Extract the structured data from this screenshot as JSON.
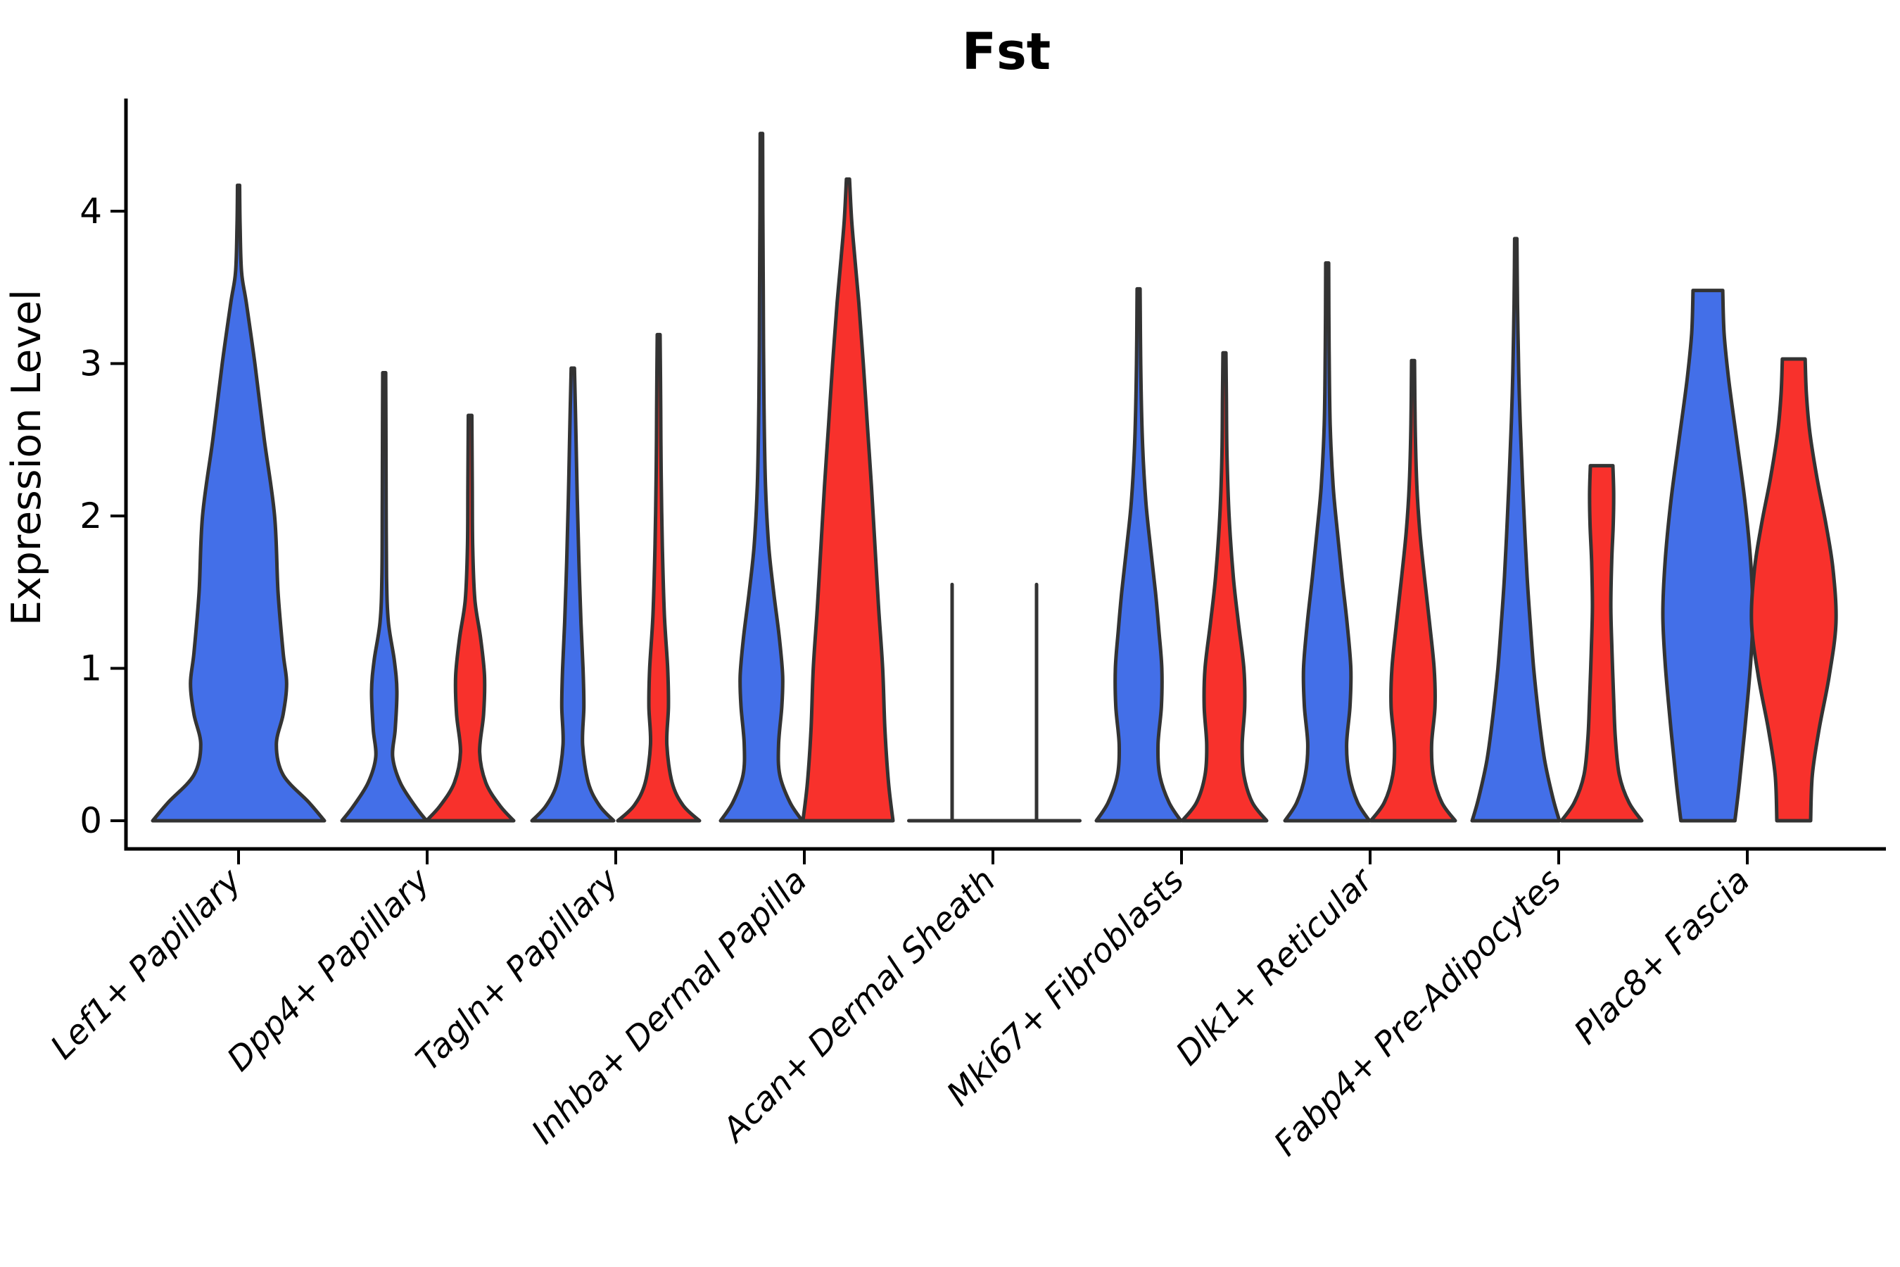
{
  "colors": {
    "blue": "#436FE8",
    "red": "#F8312C",
    "violin_stroke": "#333333",
    "axis": "#000000",
    "background": "#ffffff",
    "text": "#000000"
  },
  "chart_data": {
    "type": "violin",
    "title": "Fst",
    "ylabel": "Expression Level",
    "xlabel": "",
    "yticks": [
      0,
      1,
      2,
      3,
      4
    ],
    "ylim": [
      -0.18,
      4.74
    ],
    "legend": "none",
    "grid": false,
    "series": [
      {
        "id": "left-violin",
        "color": "blue"
      },
      {
        "id": "right-violin",
        "color": "red"
      }
    ],
    "categories": [
      "Lef1+ Papillary",
      "Dpp4+ Papillary",
      "Tagln+ Papillary",
      "Inhba+ Dermal Papilla",
      "Acan+ Dermal Sheath",
      "Mki67+ Fibroblasts",
      "Dlk1+ Reticular",
      "Fabp4+ Pre-Adipocytes",
      "Plac8+ Fascia"
    ],
    "groups": [
      {
        "category": "Lef1+ Papillary",
        "violins": [
          {
            "color": "blue",
            "kind": "violin",
            "max": 4.17,
            "offset": 0,
            "halfwidth": 122,
            "profile": [
              [
                0,
                1.0
              ],
              [
                0.12,
                0.82
              ],
              [
                0.3,
                0.52
              ],
              [
                0.5,
                0.44
              ],
              [
                0.7,
                0.52
              ],
              [
                0.9,
                0.56
              ],
              [
                1.1,
                0.52
              ],
              [
                1.5,
                0.46
              ],
              [
                2.0,
                0.42
              ],
              [
                2.5,
                0.3
              ],
              [
                3.0,
                0.19
              ],
              [
                3.4,
                0.09
              ],
              [
                3.6,
                0.035
              ],
              [
                3.9,
                0.018
              ],
              [
                4.17,
                0.012
              ]
            ]
          }
        ]
      },
      {
        "category": "Dpp4+ Papillary",
        "violins": [
          {
            "color": "blue",
            "kind": "violin",
            "max": 2.94,
            "offset": -61,
            "halfwidth": 60,
            "profile": [
              [
                0,
                1.0
              ],
              [
                0.1,
                0.72
              ],
              [
                0.25,
                0.38
              ],
              [
                0.42,
                0.2
              ],
              [
                0.6,
                0.26
              ],
              [
                0.85,
                0.3
              ],
              [
                1.05,
                0.24
              ],
              [
                1.3,
                0.1
              ],
              [
                1.6,
                0.055
              ],
              [
                2.1,
                0.045
              ],
              [
                2.6,
                0.04
              ],
              [
                2.94,
                0.035
              ]
            ]
          },
          {
            "color": "red",
            "kind": "violin",
            "max": 2.66,
            "offset": 61,
            "halfwidth": 62,
            "profile": [
              [
                0,
                1.0
              ],
              [
                0.1,
                0.68
              ],
              [
                0.25,
                0.36
              ],
              [
                0.45,
                0.22
              ],
              [
                0.7,
                0.31
              ],
              [
                0.95,
                0.33
              ],
              [
                1.2,
                0.24
              ],
              [
                1.45,
                0.11
              ],
              [
                1.8,
                0.06
              ],
              [
                2.2,
                0.05
              ],
              [
                2.66,
                0.04
              ]
            ]
          }
        ]
      },
      {
        "category": "Tagln+ Papillary",
        "violins": [
          {
            "color": "blue",
            "kind": "violin",
            "max": 2.97,
            "offset": -61,
            "halfwidth": 58,
            "profile": [
              [
                0,
                1.0
              ],
              [
                0.1,
                0.65
              ],
              [
                0.25,
                0.38
              ],
              [
                0.5,
                0.24
              ],
              [
                0.75,
                0.27
              ],
              [
                1.0,
                0.25
              ],
              [
                1.3,
                0.2
              ],
              [
                1.7,
                0.15
              ],
              [
                2.1,
                0.11
              ],
              [
                2.5,
                0.08
              ],
              [
                2.97,
                0.04
              ]
            ]
          },
          {
            "color": "red",
            "kind": "violin",
            "max": 3.19,
            "offset": 61,
            "halfwidth": 58,
            "profile": [
              [
                0,
                1.0
              ],
              [
                0.1,
                0.6
              ],
              [
                0.25,
                0.33
              ],
              [
                0.5,
                0.2
              ],
              [
                0.75,
                0.24
              ],
              [
                1.0,
                0.22
              ],
              [
                1.35,
                0.14
              ],
              [
                1.8,
                0.09
              ],
              [
                2.3,
                0.06
              ],
              [
                2.7,
                0.05
              ],
              [
                3.19,
                0.035
              ]
            ]
          }
        ]
      },
      {
        "category": "Inhba+ Dermal Papilla",
        "violins": [
          {
            "color": "blue",
            "kind": "violin",
            "max": 4.51,
            "offset": -61,
            "halfwidth": 58,
            "profile": [
              [
                0,
                1.0
              ],
              [
                0.12,
                0.7
              ],
              [
                0.3,
                0.45
              ],
              [
                0.5,
                0.42
              ],
              [
                0.75,
                0.5
              ],
              [
                0.95,
                0.52
              ],
              [
                1.2,
                0.44
              ],
              [
                1.5,
                0.3
              ],
              [
                1.8,
                0.18
              ],
              [
                2.2,
                0.1
              ],
              [
                2.8,
                0.06
              ],
              [
                3.5,
                0.045
              ],
              [
                4.0,
                0.035
              ],
              [
                4.51,
                0.03
              ]
            ]
          },
          {
            "color": "red",
            "kind": "violin",
            "max": 4.21,
            "offset": 62,
            "halfwidth": 64,
            "profile": [
              [
                0,
                1.0
              ],
              [
                0.25,
                0.9
              ],
              [
                0.6,
                0.82
              ],
              [
                1.0,
                0.77
              ],
              [
                1.4,
                0.68
              ],
              [
                1.8,
                0.6
              ],
              [
                2.2,
                0.52
              ],
              [
                2.6,
                0.43
              ],
              [
                3.0,
                0.34
              ],
              [
                3.4,
                0.24
              ],
              [
                3.7,
                0.15
              ],
              [
                3.95,
                0.08
              ],
              [
                4.21,
                0.035
              ]
            ]
          }
        ]
      },
      {
        "category": "Acan+ Dermal Sheath",
        "violins": [
          {
            "color": "blue",
            "kind": "line",
            "max": 1.55,
            "offset": -58,
            "halfwidth": 62
          },
          {
            "color": "red",
            "kind": "line",
            "max": 1.55,
            "offset": 62,
            "halfwidth": 62
          }
        ]
      },
      {
        "category": "Mki67+ Fibroblasts",
        "violins": [
          {
            "color": "blue",
            "kind": "violin",
            "max": 3.49,
            "offset": -61,
            "halfwidth": 60,
            "profile": [
              [
                0,
                1.0
              ],
              [
                0.12,
                0.72
              ],
              [
                0.3,
                0.5
              ],
              [
                0.5,
                0.46
              ],
              [
                0.75,
                0.54
              ],
              [
                1.0,
                0.55
              ],
              [
                1.25,
                0.48
              ],
              [
                1.5,
                0.4
              ],
              [
                1.8,
                0.28
              ],
              [
                2.1,
                0.17
              ],
              [
                2.5,
                0.09
              ],
              [
                3.0,
                0.05
              ],
              [
                3.49,
                0.035
              ]
            ]
          },
          {
            "color": "red",
            "kind": "violin",
            "max": 3.07,
            "offset": 61,
            "halfwidth": 60,
            "profile": [
              [
                0,
                1.0
              ],
              [
                0.12,
                0.66
              ],
              [
                0.3,
                0.46
              ],
              [
                0.5,
                0.42
              ],
              [
                0.75,
                0.48
              ],
              [
                1.0,
                0.46
              ],
              [
                1.3,
                0.33
              ],
              [
                1.6,
                0.21
              ],
              [
                2.0,
                0.11
              ],
              [
                2.4,
                0.06
              ],
              [
                2.8,
                0.045
              ],
              [
                3.07,
                0.035
              ]
            ]
          }
        ]
      },
      {
        "category": "Dlk1+ Reticular",
        "violins": [
          {
            "color": "blue",
            "kind": "violin",
            "max": 3.66,
            "offset": -61,
            "halfwidth": 60,
            "profile": [
              [
                0,
                1.0
              ],
              [
                0.12,
                0.72
              ],
              [
                0.3,
                0.52
              ],
              [
                0.5,
                0.46
              ],
              [
                0.75,
                0.54
              ],
              [
                1.0,
                0.56
              ],
              [
                1.3,
                0.47
              ],
              [
                1.6,
                0.35
              ],
              [
                1.9,
                0.24
              ],
              [
                2.2,
                0.14
              ],
              [
                2.6,
                0.07
              ],
              [
                3.1,
                0.045
              ],
              [
                3.66,
                0.035
              ]
            ]
          },
          {
            "color": "red",
            "kind": "violin",
            "max": 3.02,
            "offset": 61,
            "halfwidth": 60,
            "profile": [
              [
                0,
                1.0
              ],
              [
                0.12,
                0.68
              ],
              [
                0.3,
                0.48
              ],
              [
                0.5,
                0.44
              ],
              [
                0.75,
                0.52
              ],
              [
                1.0,
                0.5
              ],
              [
                1.3,
                0.39
              ],
              [
                1.6,
                0.27
              ],
              [
                1.9,
                0.16
              ],
              [
                2.2,
                0.09
              ],
              [
                2.6,
                0.05
              ],
              [
                3.02,
                0.035
              ]
            ]
          }
        ]
      },
      {
        "category": "Fabp4+ Pre-Adipocytes",
        "violins": [
          {
            "color": "blue",
            "kind": "violin",
            "max": 3.82,
            "offset": -61,
            "halfwidth": 62,
            "profile": [
              [
                0,
                1.0
              ],
              [
                0.15,
                0.85
              ],
              [
                0.4,
                0.66
              ],
              [
                0.7,
                0.52
              ],
              [
                1.0,
                0.41
              ],
              [
                1.3,
                0.33
              ],
              [
                1.6,
                0.26
              ],
              [
                2.0,
                0.19
              ],
              [
                2.4,
                0.13
              ],
              [
                2.8,
                0.08
              ],
              [
                3.2,
                0.05
              ],
              [
                3.5,
                0.035
              ],
              [
                3.82,
                0.025
              ]
            ]
          },
          {
            "color": "red",
            "kind": "violin",
            "max": 2.33,
            "offset": 61,
            "halfwidth": 57,
            "profile": [
              [
                0,
                1.0
              ],
              [
                0.12,
                0.68
              ],
              [
                0.3,
                0.44
              ],
              [
                0.55,
                0.34
              ],
              [
                0.8,
                0.3
              ],
              [
                1.1,
                0.26
              ],
              [
                1.4,
                0.23
              ],
              [
                1.7,
                0.25
              ],
              [
                1.95,
                0.29
              ],
              [
                2.15,
                0.3
              ],
              [
                2.33,
                0.28
              ]
            ]
          }
        ]
      },
      {
        "category": "Plac8+ Fascia",
        "violins": [
          {
            "color": "blue",
            "kind": "violin",
            "max": 3.48,
            "offset": -56,
            "halfwidth": 64,
            "profile": [
              [
                0,
                0.6
              ],
              [
                0.25,
                0.7
              ],
              [
                0.6,
                0.82
              ],
              [
                1.0,
                0.94
              ],
              [
                1.35,
                1.0
              ],
              [
                1.7,
                0.95
              ],
              [
                2.1,
                0.82
              ],
              [
                2.5,
                0.64
              ],
              [
                2.9,
                0.46
              ],
              [
                3.2,
                0.36
              ],
              [
                3.48,
                0.33
              ]
            ]
          },
          {
            "color": "red",
            "kind": "violin",
            "max": 3.03,
            "offset": 66,
            "halfwidth": 60,
            "profile": [
              [
                0,
                0.4
              ],
              [
                0.3,
                0.44
              ],
              [
                0.6,
                0.6
              ],
              [
                0.95,
                0.84
              ],
              [
                1.3,
                1.0
              ],
              [
                1.65,
                0.93
              ],
              [
                1.95,
                0.76
              ],
              [
                2.25,
                0.55
              ],
              [
                2.55,
                0.38
              ],
              [
                2.8,
                0.3
              ],
              [
                3.03,
                0.27
              ]
            ]
          }
        ]
      }
    ]
  }
}
